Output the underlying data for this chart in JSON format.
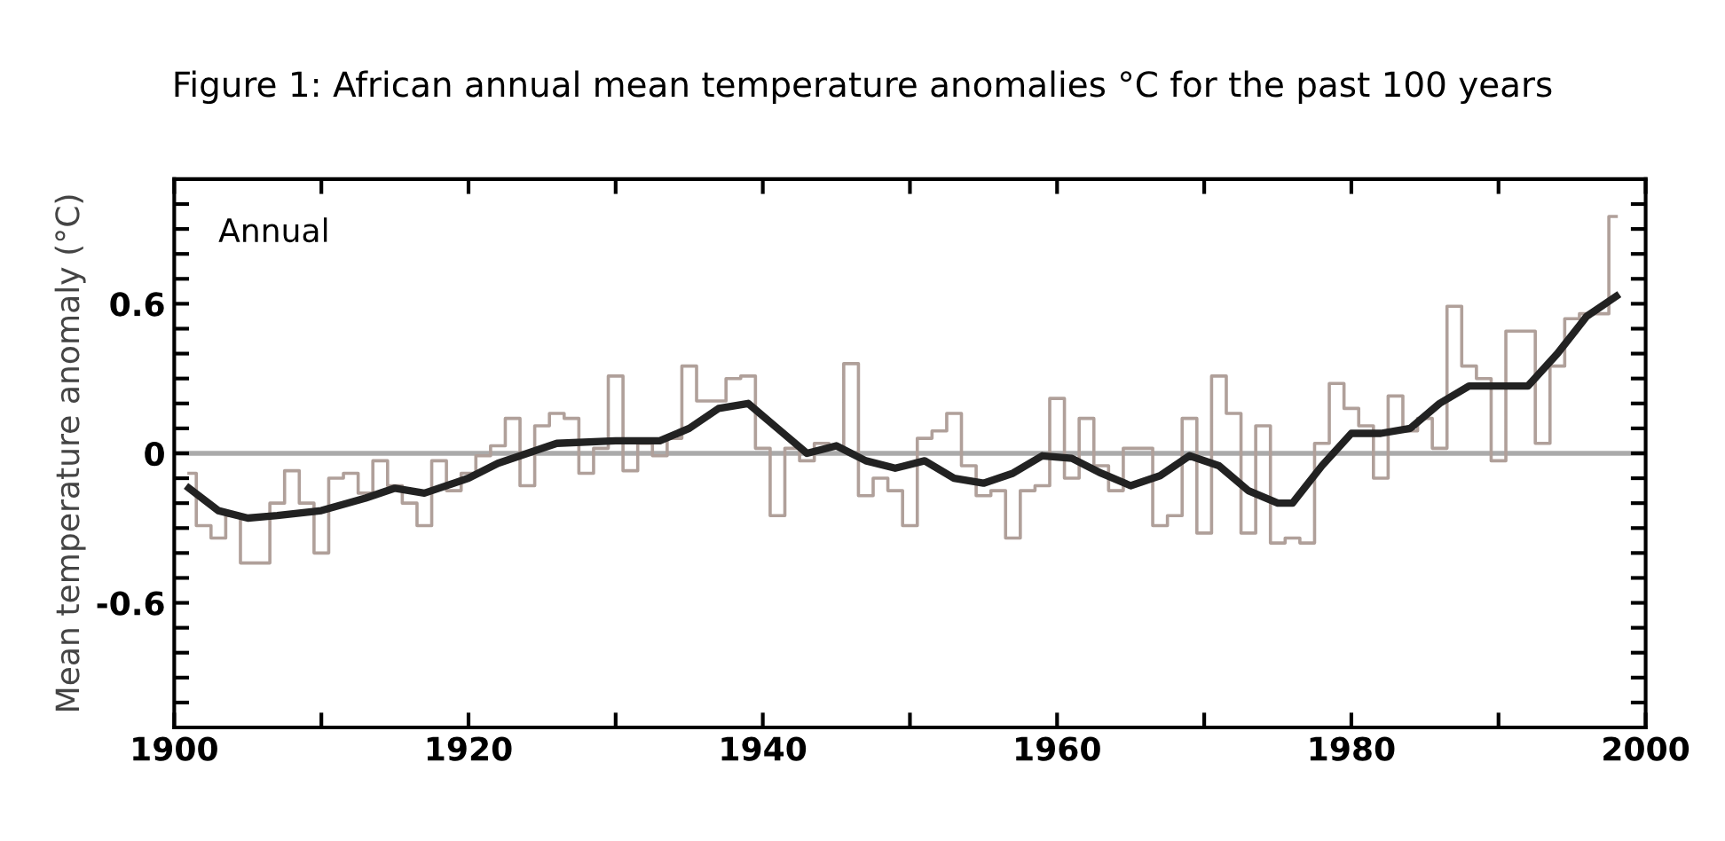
{
  "chart_data": {
    "type": "line",
    "title": "Figure 1: African annual mean temperature anomalies °C for the past 100 years",
    "ylabel": "Mean temperature anomaly (°C)",
    "annotations": [
      "Annual"
    ],
    "xlim": [
      1900,
      2000
    ],
    "xticks": [
      1900,
      {
        "value": 1910,
        "label": null
      },
      1920,
      {
        "value": 1930,
        "label": null
      },
      1940,
      {
        "value": 1950,
        "label": null
      },
      1960,
      {
        "value": 1970,
        "label": null
      },
      1980,
      {
        "value": 1990,
        "label": null
      },
      2000
    ],
    "ylim": [
      -1.1,
      1.1
    ],
    "yticks": [
      {
        "value": -1.0,
        "label": null
      },
      {
        "value": -0.9,
        "label": null
      },
      {
        "value": -0.8,
        "label": null
      },
      {
        "value": -0.7,
        "label": null
      },
      -0.6,
      {
        "value": -0.5,
        "label": null
      },
      {
        "value": -0.4,
        "label": null
      },
      {
        "value": -0.3,
        "label": null
      },
      {
        "value": -0.2,
        "label": null
      },
      {
        "value": -0.1,
        "label": null
      },
      0,
      {
        "value": 0.1,
        "label": null
      },
      {
        "value": 0.2,
        "label": null
      },
      {
        "value": 0.3,
        "label": null
      },
      {
        "value": 0.4,
        "label": null
      },
      {
        "value": 0.5,
        "label": null
      },
      0.6,
      {
        "value": 0.7,
        "label": null
      },
      {
        "value": 0.8,
        "label": null
      },
      {
        "value": 0.9,
        "label": null
      },
      {
        "value": 1.0,
        "label": null
      }
    ],
    "grid": false,
    "legend": false,
    "ref_lines": [
      {
        "axis": "y",
        "value": 0,
        "color": "#aaaaaa"
      }
    ],
    "series": [
      {
        "type": "step",
        "color": "#b0a09a",
        "x": [
          1901,
          1902,
          1903,
          1904,
          1905,
          1906,
          1907,
          1908,
          1909,
          1910,
          1911,
          1912,
          1913,
          1914,
          1915,
          1916,
          1917,
          1918,
          1919,
          1920,
          1921,
          1922,
          1923,
          1924,
          1925,
          1926,
          1927,
          1928,
          1929,
          1930,
          1931,
          1932,
          1933,
          1934,
          1935,
          1936,
          1937,
          1938,
          1939,
          1940,
          1941,
          1942,
          1943,
          1944,
          1945,
          1946,
          1947,
          1948,
          1949,
          1950,
          1951,
          1952,
          1953,
          1954,
          1955,
          1956,
          1957,
          1958,
          1959,
          1960,
          1961,
          1962,
          1963,
          1964,
          1965,
          1966,
          1967,
          1968,
          1969,
          1970,
          1971,
          1972,
          1973,
          1974,
          1975,
          1976,
          1977,
          1978,
          1979,
          1980,
          1981,
          1982,
          1983,
          1984,
          1985,
          1986,
          1987,
          1988,
          1989,
          1990,
          1991,
          1992,
          1993,
          1994,
          1995,
          1996,
          1997,
          1998
        ],
        "values": [
          -0.08,
          -0.29,
          -0.34,
          -0.25,
          -0.44,
          -0.44,
          -0.2,
          -0.07,
          -0.2,
          -0.4,
          -0.1,
          -0.08,
          -0.16,
          -0.03,
          -0.13,
          -0.2,
          -0.29,
          -0.03,
          -0.15,
          -0.08,
          -0.01,
          0.03,
          0.14,
          -0.13,
          0.11,
          0.16,
          0.14,
          -0.08,
          0.02,
          0.31,
          -0.07,
          0.04,
          -0.01,
          0.06,
          0.35,
          0.21,
          0.21,
          0.3,
          0.31,
          0.02,
          -0.25,
          0.02,
          -0.03,
          0.04,
          0.02,
          0.36,
          -0.17,
          -0.1,
          -0.15,
          -0.29,
          0.06,
          0.09,
          0.16,
          -0.05,
          -0.17,
          -0.15,
          -0.34,
          -0.15,
          -0.13,
          0.22,
          -0.1,
          0.14,
          -0.05,
          -0.15,
          0.02,
          0.02,
          -0.29,
          -0.25,
          0.14,
          -0.32,
          0.31,
          0.16,
          -0.32,
          0.11,
          -0.36,
          -0.34,
          -0.36,
          0.04,
          0.28,
          0.18,
          0.11,
          -0.1,
          0.23,
          0.09,
          0.14,
          0.02,
          0.59,
          0.35,
          0.3,
          -0.03,
          0.49,
          0.49,
          0.04,
          0.35,
          0.54,
          0.56,
          0.56,
          0.95
        ]
      },
      {
        "color": "#222222",
        "x": [
          1901,
          1903,
          1905,
          1907,
          1910,
          1913,
          1915,
          1917,
          1920,
          1922,
          1924,
          1926,
          1930,
          1933,
          1935,
          1937,
          1939,
          1941,
          1943,
          1945,
          1947,
          1949,
          1951,
          1953,
          1955,
          1957,
          1959,
          1961,
          1963,
          1965,
          1967,
          1969,
          1971,
          1973,
          1975,
          1976,
          1978,
          1980,
          1982,
          1984,
          1986,
          1988,
          1990,
          1992,
          1994,
          1996,
          1998
        ],
        "values": [
          -0.14,
          -0.23,
          -0.26,
          -0.25,
          -0.23,
          -0.18,
          -0.14,
          -0.16,
          -0.1,
          -0.04,
          0.0,
          0.04,
          0.05,
          0.05,
          0.1,
          0.18,
          0.2,
          0.1,
          0.0,
          0.03,
          -0.03,
          -0.06,
          -0.03,
          -0.1,
          -0.12,
          -0.08,
          -0.01,
          -0.02,
          -0.08,
          -0.13,
          -0.09,
          -0.01,
          -0.05,
          -0.15,
          -0.2,
          -0.2,
          -0.05,
          0.08,
          0.08,
          0.1,
          0.2,
          0.27,
          0.27,
          0.27,
          0.4,
          0.55,
          0.63
        ]
      }
    ]
  }
}
